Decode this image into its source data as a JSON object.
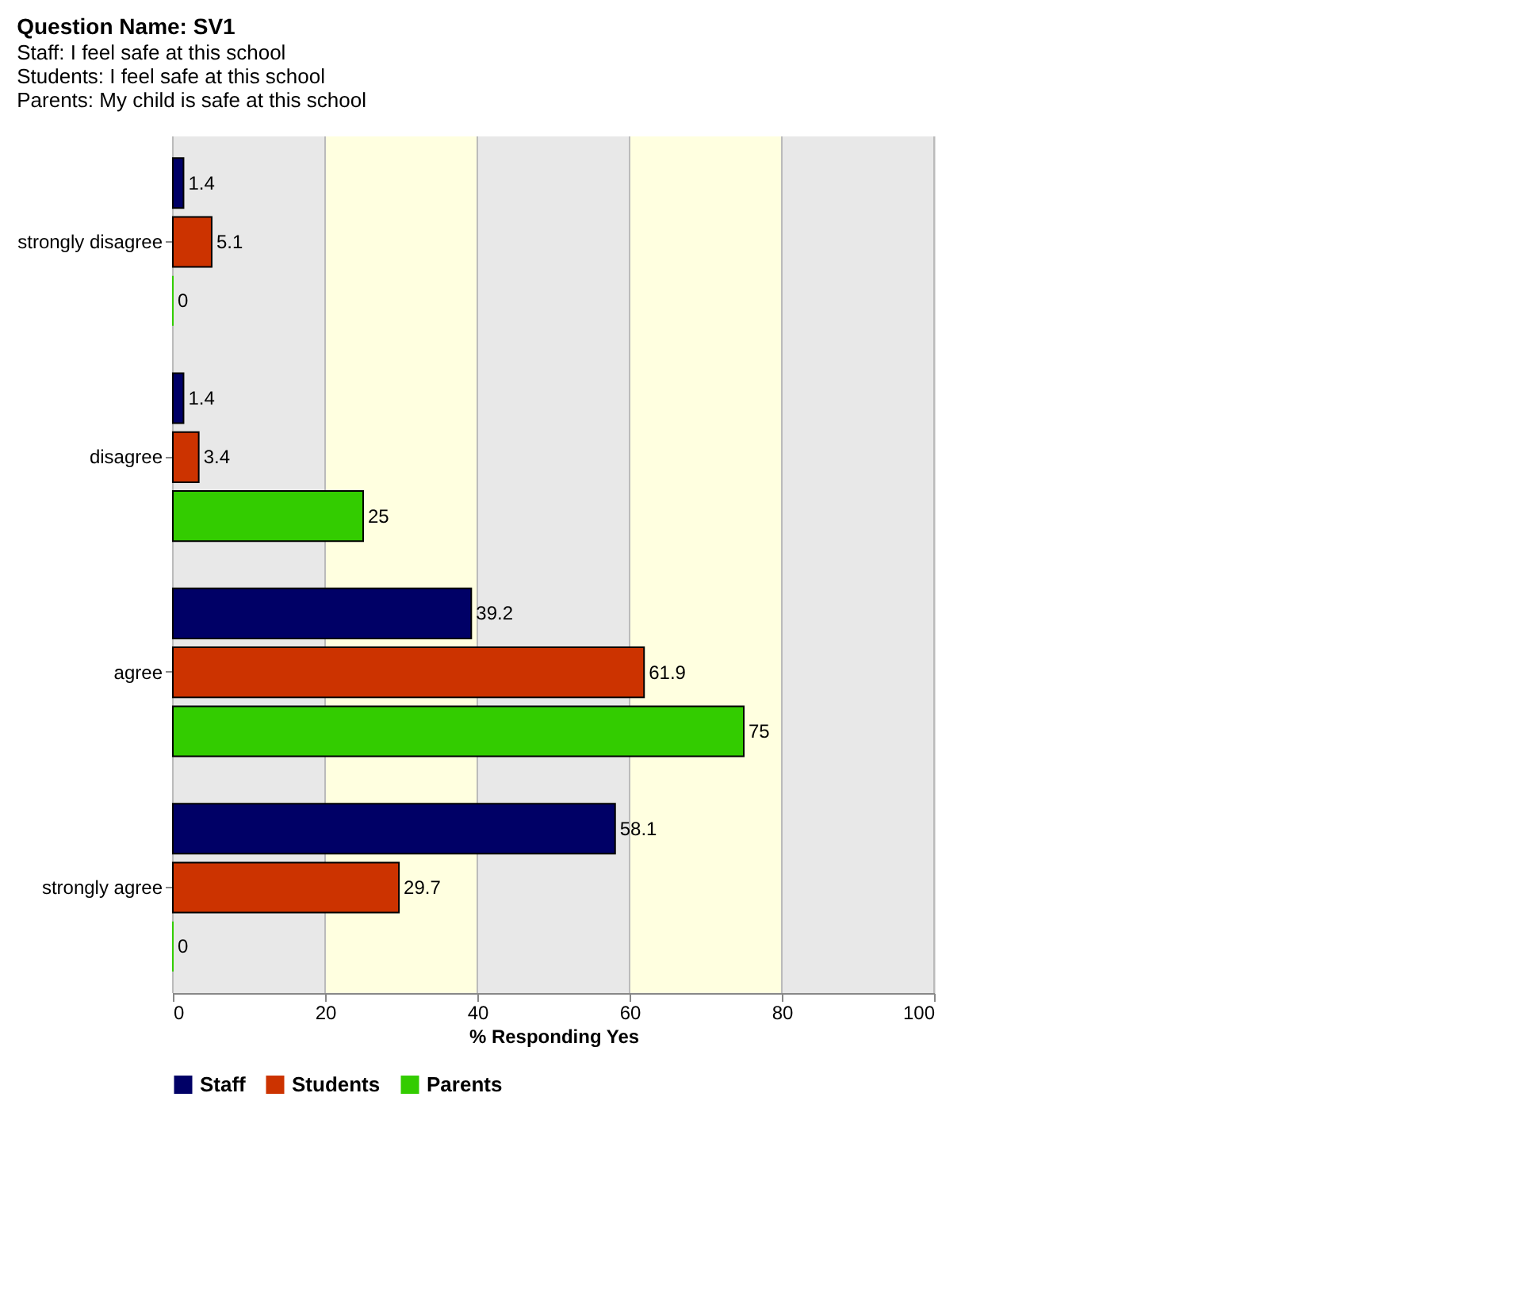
{
  "chart_data": {
    "type": "bar",
    "orientation": "horizontal",
    "title": "Question Name: SV1",
    "annotations": [
      "Staff: I feel safe at this school",
      "Students: I feel safe at this school",
      "Parents: My child is safe at this school"
    ],
    "categories": [
      "strongly disagree",
      "disagree",
      "agree",
      "strongly agree"
    ],
    "series": [
      {
        "name": "Staff",
        "color": "#000066",
        "values": [
          1.4,
          1.4,
          39.2,
          58.1
        ]
      },
      {
        "name": "Students",
        "color": "#cc3300",
        "values": [
          5.1,
          3.4,
          61.9,
          29.7
        ]
      },
      {
        "name": "Parents",
        "color": "#33cc00",
        "values": [
          0,
          25,
          75,
          0
        ]
      }
    ],
    "xlabel": "% Responding Yes",
    "xlim": [
      0,
      100
    ],
    "xticks": [
      0,
      20,
      40,
      60,
      80,
      100
    ],
    "bands": [
      {
        "axis": "x",
        "from": 0,
        "to": 20,
        "color": "#e8e8e8"
      },
      {
        "axis": "x",
        "from": 20,
        "to": 40,
        "color": "#ffffe0"
      },
      {
        "axis": "x",
        "from": 40,
        "to": 60,
        "color": "#e8e8e8"
      },
      {
        "axis": "x",
        "from": 60,
        "to": 80,
        "color": "#ffffe0"
      },
      {
        "axis": "x",
        "from": 80,
        "to": 100,
        "color": "#e8e8e8"
      }
    ],
    "grid": "x",
    "data_labels": true,
    "legend": "bottom left"
  }
}
